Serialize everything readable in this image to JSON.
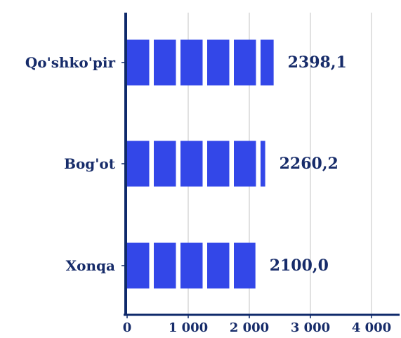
{
  "chart_data": {
    "type": "bar",
    "orientation": "horizontal",
    "categories": [
      "Qo'shko'pir",
      "Bog'ot",
      "Xonqa"
    ],
    "values": [
      2398.1,
      2260.2,
      2100.0
    ],
    "value_labels": [
      "2398,1",
      "2260,2",
      "2100,0"
    ],
    "x_ticks": [
      0,
      1000,
      2000,
      3000,
      4000
    ],
    "x_tick_labels": [
      "0",
      "1 000",
      "2 000",
      "3 000",
      "4 000"
    ],
    "xlim": [
      0,
      4000
    ],
    "grid": "vertical",
    "legend": "none",
    "bar_style": "segmented",
    "colors": {
      "bar": "#3347E8",
      "axis": "#0F2A6B",
      "label": "#172C6A",
      "grid": "#D7D7D7",
      "background": "#FFFFFF"
    }
  }
}
